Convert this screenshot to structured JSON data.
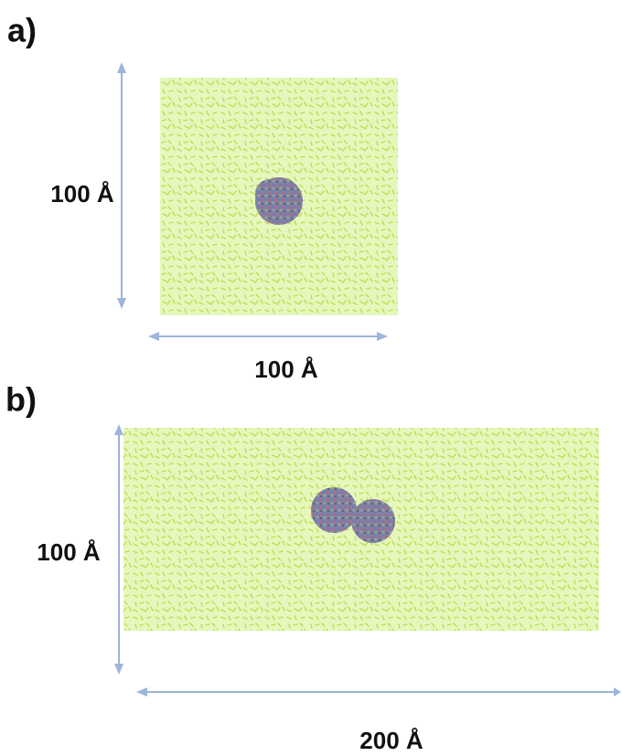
{
  "panels": [
    {
      "label": "a)",
      "height_label": "100 Å",
      "width_label": "100 Å"
    },
    {
      "label": "b)",
      "height_label": "100 Å",
      "width_label": "200 Å"
    }
  ]
}
